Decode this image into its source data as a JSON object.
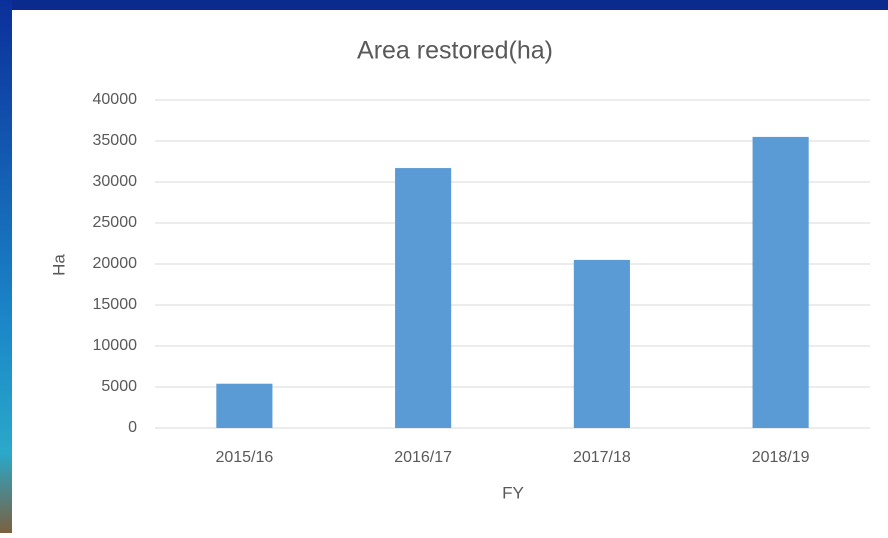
{
  "chart_data": {
    "type": "bar",
    "title": "Area restored(ha)",
    "x_label": "FY",
    "y_label": "Ha",
    "categories": [
      "2015/16",
      "2016/17",
      "2017/18",
      "2018/19"
    ],
    "values": [
      5400,
      31700,
      20500,
      35500
    ],
    "color": "#5b9bd5",
    "ylim": [
      0,
      40000
    ],
    "yticks": [
      0,
      5000,
      10000,
      15000,
      20000,
      25000,
      30000,
      35000,
      40000
    ],
    "grid": true
  }
}
